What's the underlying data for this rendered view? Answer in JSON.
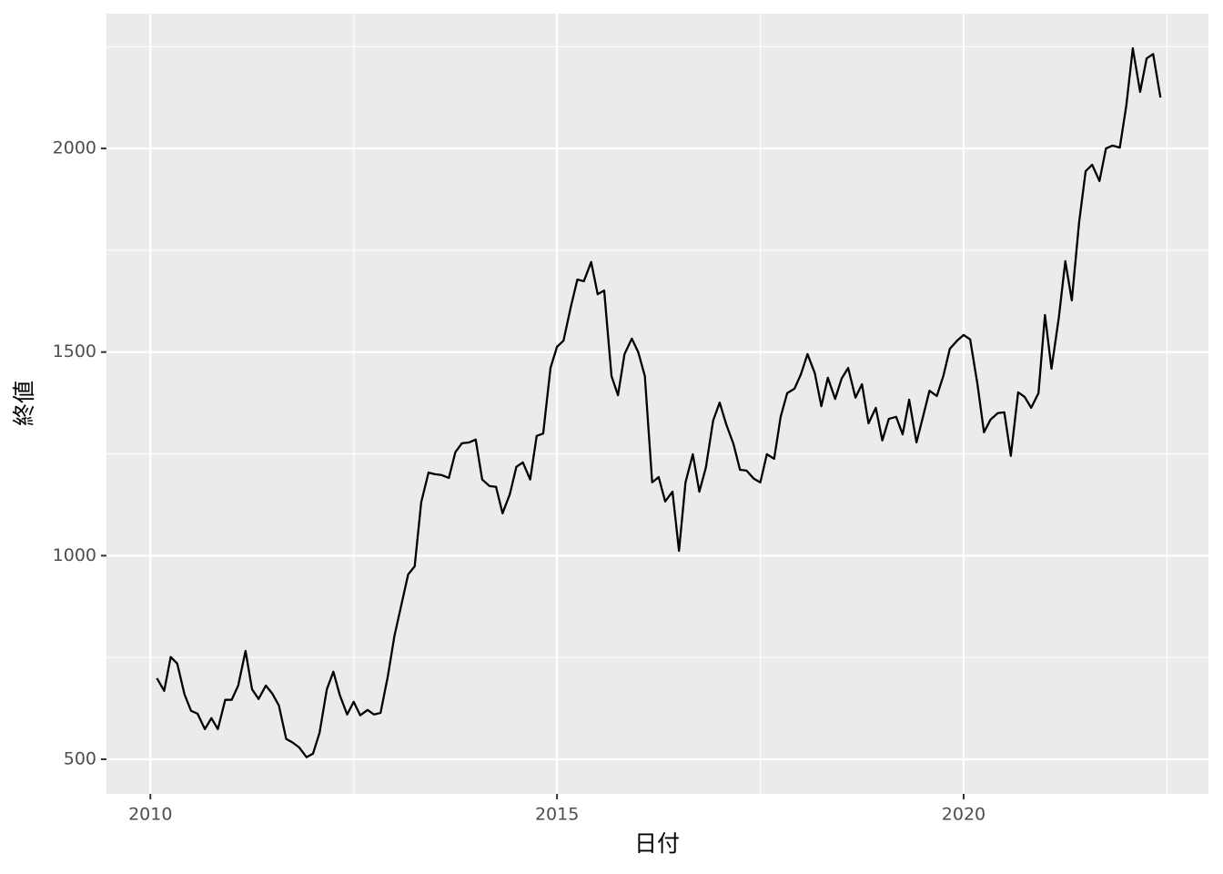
{
  "chart_data": {
    "type": "line",
    "x_label": "日付",
    "y_label": "終値",
    "xlim": [
      2009.46,
      2023.01
    ],
    "ylim": [
      415,
      2331
    ],
    "xticks": [
      2010,
      2015,
      2020
    ],
    "yticks": [
      500,
      1000,
      1500,
      2000
    ],
    "grid": true,
    "series": [
      {
        "name": "終値",
        "color": "#000000",
        "x": [
          2010.08,
          2010.17,
          2010.25,
          2010.33,
          2010.42,
          2010.5,
          2010.58,
          2010.67,
          2010.75,
          2010.83,
          2010.92,
          2011,
          2011.08,
          2011.17,
          2011.25,
          2011.33,
          2011.42,
          2011.5,
          2011.58,
          2011.67,
          2011.75,
          2011.83,
          2011.92,
          2012,
          2012.08,
          2012.17,
          2012.25,
          2012.33,
          2012.42,
          2012.5,
          2012.58,
          2012.67,
          2012.75,
          2012.83,
          2012.92,
          2013,
          2013.08,
          2013.17,
          2013.25,
          2013.33,
          2013.42,
          2013.5,
          2013.58,
          2013.67,
          2013.75,
          2013.83,
          2013.92,
          2014,
          2014.08,
          2014.17,
          2014.25,
          2014.33,
          2014.42,
          2014.5,
          2014.58,
          2014.67,
          2014.75,
          2014.83,
          2014.92,
          2015,
          2015.08,
          2015.17,
          2015.25,
          2015.33,
          2015.42,
          2015.5,
          2015.58,
          2015.67,
          2015.75,
          2015.83,
          2015.92,
          2016,
          2016.08,
          2016.17,
          2016.25,
          2016.33,
          2016.42,
          2016.5,
          2016.58,
          2016.67,
          2016.75,
          2016.83,
          2016.92,
          2017,
          2017.08,
          2017.17,
          2017.25,
          2017.33,
          2017.42,
          2017.5,
          2017.58,
          2017.67,
          2017.75,
          2017.83,
          2017.92,
          2018,
          2018.08,
          2018.17,
          2018.25,
          2018.33,
          2018.42,
          2018.5,
          2018.58,
          2018.67,
          2018.75,
          2018.83,
          2018.92,
          2019,
          2019.08,
          2019.17,
          2019.25,
          2019.33,
          2019.42,
          2019.5,
          2019.58,
          2019.67,
          2019.75,
          2019.83,
          2019.92,
          2020,
          2020.08,
          2020.17,
          2020.25,
          2020.33,
          2020.42,
          2020.5,
          2020.58,
          2020.67,
          2020.75,
          2020.83,
          2020.92,
          2021,
          2021.08,
          2021.17,
          2021.25,
          2021.33,
          2021.42,
          2021.5,
          2021.58,
          2021.67,
          2021.75,
          2021.83,
          2021.92,
          2022,
          2022.08,
          2022.17,
          2022.25,
          2022.33,
          2022.42
        ],
        "values": [
          699,
          668,
          751,
          735,
          659,
          619,
          612,
          574,
          601,
          574,
          646,
          646,
          681,
          766,
          672,
          648,
          681,
          661,
          632,
          550,
          541,
          529,
          505,
          514,
          565,
          672,
          715,
          657,
          610,
          641,
          608,
          621,
          610,
          614,
          704,
          802,
          874,
          954,
          974,
          1131,
          1204,
          1200,
          1198,
          1191,
          1254,
          1276,
          1278,
          1285,
          1187,
          1171,
          1169,
          1104,
          1151,
          1218,
          1229,
          1187,
          1294,
          1300,
          1461,
          1513,
          1528,
          1611,
          1678,
          1674,
          1721,
          1642,
          1651,
          1441,
          1394,
          1495,
          1533,
          1499,
          1441,
          1180,
          1193,
          1133,
          1157,
          1012,
          1180,
          1249,
          1157,
          1216,
          1332,
          1376,
          1323,
          1274,
          1211,
          1209,
          1189,
          1180,
          1249,
          1238,
          1341,
          1399,
          1410,
          1446,
          1495,
          1448,
          1367,
          1437,
          1385,
          1435,
          1461,
          1388,
          1421,
          1325,
          1363,
          1283,
          1336,
          1341,
          1298,
          1383,
          1278,
          1341,
          1405,
          1392,
          1441,
          1508,
          1528,
          1542,
          1531,
          1421,
          1303,
          1334,
          1350,
          1352,
          1245,
          1401,
          1390,
          1363,
          1399,
          1591,
          1459,
          1584,
          1723,
          1627,
          1819,
          1944,
          1960,
          1920,
          2000,
          2007,
          2002,
          2105,
          2246,
          2139,
          2221,
          2232,
          2125
        ]
      }
    ]
  }
}
